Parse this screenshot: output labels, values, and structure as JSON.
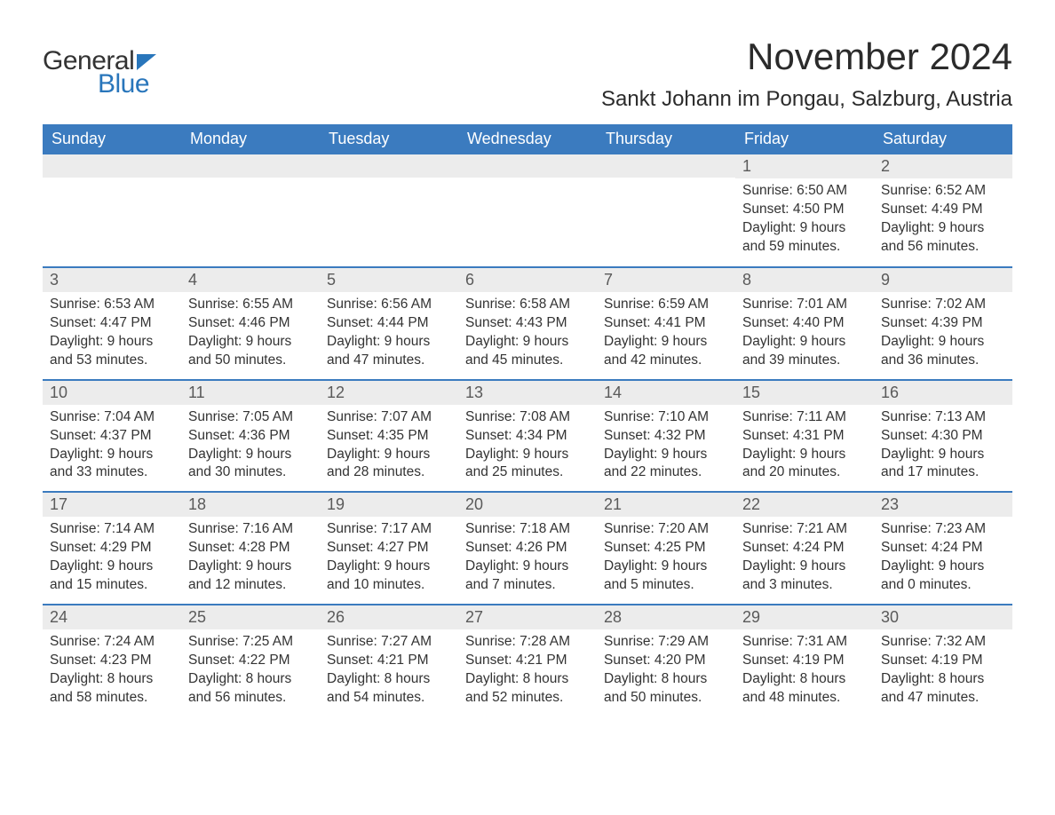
{
  "logo": {
    "text_general": "General",
    "text_blue": "Blue"
  },
  "header": {
    "month_title": "November 2024",
    "location": "Sankt Johann im Pongau, Salzburg, Austria"
  },
  "colors": {
    "header_bg": "#3b7bbf",
    "header_text": "#ffffff",
    "row_border": "#3b7bbf",
    "daynum_bg": "#ececec",
    "daynum_text": "#5a5a5a",
    "body_text": "#333333",
    "logo_blue": "#2976bb",
    "background": "#ffffff"
  },
  "typography": {
    "month_title_size": 42,
    "location_size": 24,
    "day_header_size": 18,
    "day_number_size": 18,
    "cell_text_size": 15.5,
    "logo_size": 30
  },
  "day_headers": [
    "Sunday",
    "Monday",
    "Tuesday",
    "Wednesday",
    "Thursday",
    "Friday",
    "Saturday"
  ],
  "weeks": [
    [
      {
        "empty": true
      },
      {
        "empty": true
      },
      {
        "empty": true
      },
      {
        "empty": true
      },
      {
        "empty": true
      },
      {
        "day": "1",
        "sunrise": "Sunrise: 6:50 AM",
        "sunset": "Sunset: 4:50 PM",
        "daylight1": "Daylight: 9 hours",
        "daylight2": "and 59 minutes."
      },
      {
        "day": "2",
        "sunrise": "Sunrise: 6:52 AM",
        "sunset": "Sunset: 4:49 PM",
        "daylight1": "Daylight: 9 hours",
        "daylight2": "and 56 minutes."
      }
    ],
    [
      {
        "day": "3",
        "sunrise": "Sunrise: 6:53 AM",
        "sunset": "Sunset: 4:47 PM",
        "daylight1": "Daylight: 9 hours",
        "daylight2": "and 53 minutes."
      },
      {
        "day": "4",
        "sunrise": "Sunrise: 6:55 AM",
        "sunset": "Sunset: 4:46 PM",
        "daylight1": "Daylight: 9 hours",
        "daylight2": "and 50 minutes."
      },
      {
        "day": "5",
        "sunrise": "Sunrise: 6:56 AM",
        "sunset": "Sunset: 4:44 PM",
        "daylight1": "Daylight: 9 hours",
        "daylight2": "and 47 minutes."
      },
      {
        "day": "6",
        "sunrise": "Sunrise: 6:58 AM",
        "sunset": "Sunset: 4:43 PM",
        "daylight1": "Daylight: 9 hours",
        "daylight2": "and 45 minutes."
      },
      {
        "day": "7",
        "sunrise": "Sunrise: 6:59 AM",
        "sunset": "Sunset: 4:41 PM",
        "daylight1": "Daylight: 9 hours",
        "daylight2": "and 42 minutes."
      },
      {
        "day": "8",
        "sunrise": "Sunrise: 7:01 AM",
        "sunset": "Sunset: 4:40 PM",
        "daylight1": "Daylight: 9 hours",
        "daylight2": "and 39 minutes."
      },
      {
        "day": "9",
        "sunrise": "Sunrise: 7:02 AM",
        "sunset": "Sunset: 4:39 PM",
        "daylight1": "Daylight: 9 hours",
        "daylight2": "and 36 minutes."
      }
    ],
    [
      {
        "day": "10",
        "sunrise": "Sunrise: 7:04 AM",
        "sunset": "Sunset: 4:37 PM",
        "daylight1": "Daylight: 9 hours",
        "daylight2": "and 33 minutes."
      },
      {
        "day": "11",
        "sunrise": "Sunrise: 7:05 AM",
        "sunset": "Sunset: 4:36 PM",
        "daylight1": "Daylight: 9 hours",
        "daylight2": "and 30 minutes."
      },
      {
        "day": "12",
        "sunrise": "Sunrise: 7:07 AM",
        "sunset": "Sunset: 4:35 PM",
        "daylight1": "Daylight: 9 hours",
        "daylight2": "and 28 minutes."
      },
      {
        "day": "13",
        "sunrise": "Sunrise: 7:08 AM",
        "sunset": "Sunset: 4:34 PM",
        "daylight1": "Daylight: 9 hours",
        "daylight2": "and 25 minutes."
      },
      {
        "day": "14",
        "sunrise": "Sunrise: 7:10 AM",
        "sunset": "Sunset: 4:32 PM",
        "daylight1": "Daylight: 9 hours",
        "daylight2": "and 22 minutes."
      },
      {
        "day": "15",
        "sunrise": "Sunrise: 7:11 AM",
        "sunset": "Sunset: 4:31 PM",
        "daylight1": "Daylight: 9 hours",
        "daylight2": "and 20 minutes."
      },
      {
        "day": "16",
        "sunrise": "Sunrise: 7:13 AM",
        "sunset": "Sunset: 4:30 PM",
        "daylight1": "Daylight: 9 hours",
        "daylight2": "and 17 minutes."
      }
    ],
    [
      {
        "day": "17",
        "sunrise": "Sunrise: 7:14 AM",
        "sunset": "Sunset: 4:29 PM",
        "daylight1": "Daylight: 9 hours",
        "daylight2": "and 15 minutes."
      },
      {
        "day": "18",
        "sunrise": "Sunrise: 7:16 AM",
        "sunset": "Sunset: 4:28 PM",
        "daylight1": "Daylight: 9 hours",
        "daylight2": "and 12 minutes."
      },
      {
        "day": "19",
        "sunrise": "Sunrise: 7:17 AM",
        "sunset": "Sunset: 4:27 PM",
        "daylight1": "Daylight: 9 hours",
        "daylight2": "and 10 minutes."
      },
      {
        "day": "20",
        "sunrise": "Sunrise: 7:18 AM",
        "sunset": "Sunset: 4:26 PM",
        "daylight1": "Daylight: 9 hours",
        "daylight2": "and 7 minutes."
      },
      {
        "day": "21",
        "sunrise": "Sunrise: 7:20 AM",
        "sunset": "Sunset: 4:25 PM",
        "daylight1": "Daylight: 9 hours",
        "daylight2": "and 5 minutes."
      },
      {
        "day": "22",
        "sunrise": "Sunrise: 7:21 AM",
        "sunset": "Sunset: 4:24 PM",
        "daylight1": "Daylight: 9 hours",
        "daylight2": "and 3 minutes."
      },
      {
        "day": "23",
        "sunrise": "Sunrise: 7:23 AM",
        "sunset": "Sunset: 4:24 PM",
        "daylight1": "Daylight: 9 hours",
        "daylight2": "and 0 minutes."
      }
    ],
    [
      {
        "day": "24",
        "sunrise": "Sunrise: 7:24 AM",
        "sunset": "Sunset: 4:23 PM",
        "daylight1": "Daylight: 8 hours",
        "daylight2": "and 58 minutes."
      },
      {
        "day": "25",
        "sunrise": "Sunrise: 7:25 AM",
        "sunset": "Sunset: 4:22 PM",
        "daylight1": "Daylight: 8 hours",
        "daylight2": "and 56 minutes."
      },
      {
        "day": "26",
        "sunrise": "Sunrise: 7:27 AM",
        "sunset": "Sunset: 4:21 PM",
        "daylight1": "Daylight: 8 hours",
        "daylight2": "and 54 minutes."
      },
      {
        "day": "27",
        "sunrise": "Sunrise: 7:28 AM",
        "sunset": "Sunset: 4:21 PM",
        "daylight1": "Daylight: 8 hours",
        "daylight2": "and 52 minutes."
      },
      {
        "day": "28",
        "sunrise": "Sunrise: 7:29 AM",
        "sunset": "Sunset: 4:20 PM",
        "daylight1": "Daylight: 8 hours",
        "daylight2": "and 50 minutes."
      },
      {
        "day": "29",
        "sunrise": "Sunrise: 7:31 AM",
        "sunset": "Sunset: 4:19 PM",
        "daylight1": "Daylight: 8 hours",
        "daylight2": "and 48 minutes."
      },
      {
        "day": "30",
        "sunrise": "Sunrise: 7:32 AM",
        "sunset": "Sunset: 4:19 PM",
        "daylight1": "Daylight: 8 hours",
        "daylight2": "and 47 minutes."
      }
    ]
  ]
}
